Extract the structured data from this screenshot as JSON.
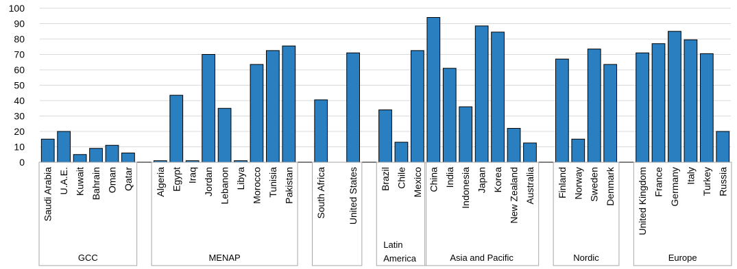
{
  "chart_data": {
    "type": "bar",
    "ylim": [
      0,
      100
    ],
    "yticks": [
      0,
      10,
      20,
      30,
      40,
      50,
      60,
      70,
      80,
      90,
      100
    ],
    "grid": true,
    "bar_color": "#2a7fc1",
    "bar_edge_color": "#000000",
    "grid_color": "#d9d9d9",
    "group_border_color": "#a6a6a6",
    "categories": [
      "Saudi Arabia",
      "U.A.E.",
      "Kuwait",
      "Bahrain",
      "Oman",
      "Qatar",
      "",
      "Algeria",
      "Egypt",
      "Iraq",
      "Jordan",
      "Lebanon",
      "Libya",
      "Morocco",
      "Tunisia",
      "Pakistan",
      "",
      "South Africa",
      "",
      "United States",
      "",
      "Brazil",
      "Chile",
      "Mexico",
      "China",
      "India",
      "Indonesia",
      "Japan",
      "Korea",
      "New Zealand",
      "Australia",
      "",
      "Finland",
      "Norway",
      "Sweden",
      "Denmark",
      "",
      "United Kingdom",
      "France",
      "Germany",
      "Italy",
      "Turkey",
      "Russia"
    ],
    "values": [
      15,
      20,
      5,
      9,
      11,
      6,
      null,
      1,
      43.5,
      1,
      70,
      35,
      1,
      63.5,
      72.5,
      75.5,
      null,
      40.5,
      null,
      71,
      null,
      34,
      13,
      72.5,
      94,
      61,
      36,
      88.5,
      84.5,
      22,
      12.5,
      null,
      67,
      15,
      73.5,
      63.5,
      null,
      71,
      77,
      85,
      79.5,
      70.5,
      20
    ],
    "groups": [
      {
        "label": "GCC",
        "start": 0,
        "end": 5
      },
      {
        "label": "MENAP",
        "start": 7,
        "end": 15
      },
      {
        "label": "",
        "start": 17,
        "end": 19
      },
      {
        "label": "Latin America",
        "start": 21,
        "end": 23
      },
      {
        "label": "Asia and Pacific",
        "start": 24,
        "end": 30
      },
      {
        "label": "Nordic",
        "start": 32,
        "end": 35
      },
      {
        "label": "Europe",
        "start": 37,
        "end": 42
      }
    ]
  }
}
